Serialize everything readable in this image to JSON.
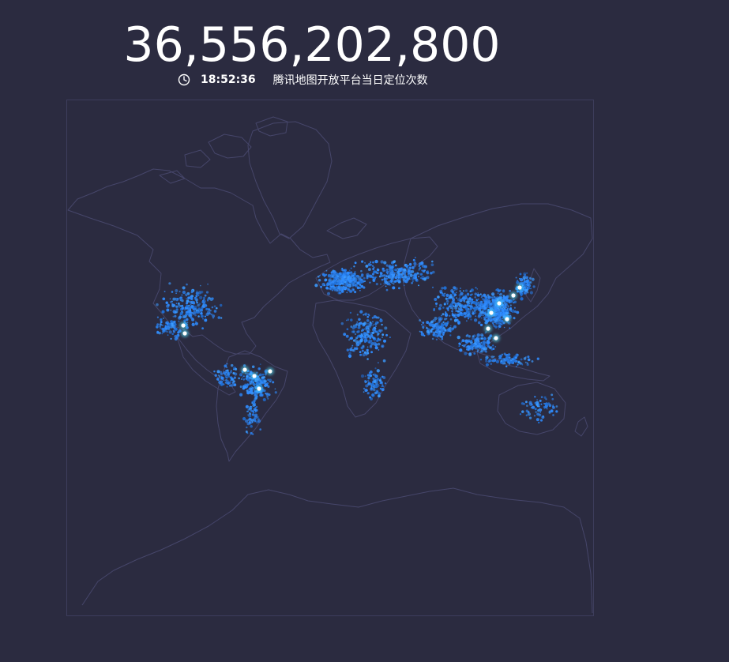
{
  "counter": {
    "value": "36,556,202,800"
  },
  "status": {
    "time": "18:52:36",
    "description": "腾讯地图开放平台当日定位次数"
  },
  "map": {
    "projection": "mercator",
    "background_color": "#2b2b40",
    "outline_color": "#4a4a6a",
    "dot_color": "#2f8cff",
    "glow_color": "#57e6ff",
    "hotspot_color": "#ffffff",
    "icon": "world-map"
  }
}
